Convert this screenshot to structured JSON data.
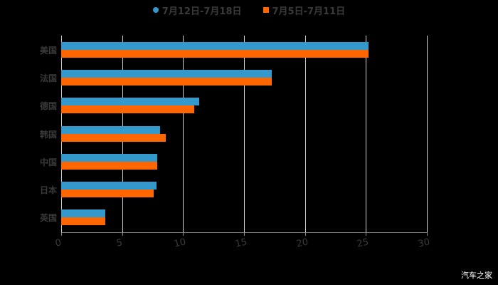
{
  "chart_data": {
    "type": "bar",
    "orientation": "horizontal",
    "title": "",
    "xlabel": "",
    "ylabel": "",
    "xlim": [
      0,
      30
    ],
    "x_ticks": [
      "0",
      "5",
      "10",
      "15",
      "20",
      "25",
      "30"
    ],
    "grid": true,
    "legend_position": "top",
    "categories": [
      "美国",
      "法国",
      "德国",
      "韩国",
      "中国",
      "日本",
      "英国"
    ],
    "series": [
      {
        "name": "7月12日-7月18日",
        "color": "#3399cc",
        "marker": "circle",
        "values": [
          25.2,
          17.3,
          11.3,
          8.1,
          7.9,
          7.8,
          3.6
        ]
      },
      {
        "name": "7月5日-7月11日",
        "color": "#ff6600",
        "marker": "square",
        "values": [
          25.2,
          17.3,
          10.9,
          8.6,
          7.9,
          7.6,
          3.6
        ]
      }
    ]
  },
  "legend": {
    "series1": "7月12日-7月18日",
    "series2": "7月5日-7月11日"
  },
  "watermark": "汽车之家"
}
